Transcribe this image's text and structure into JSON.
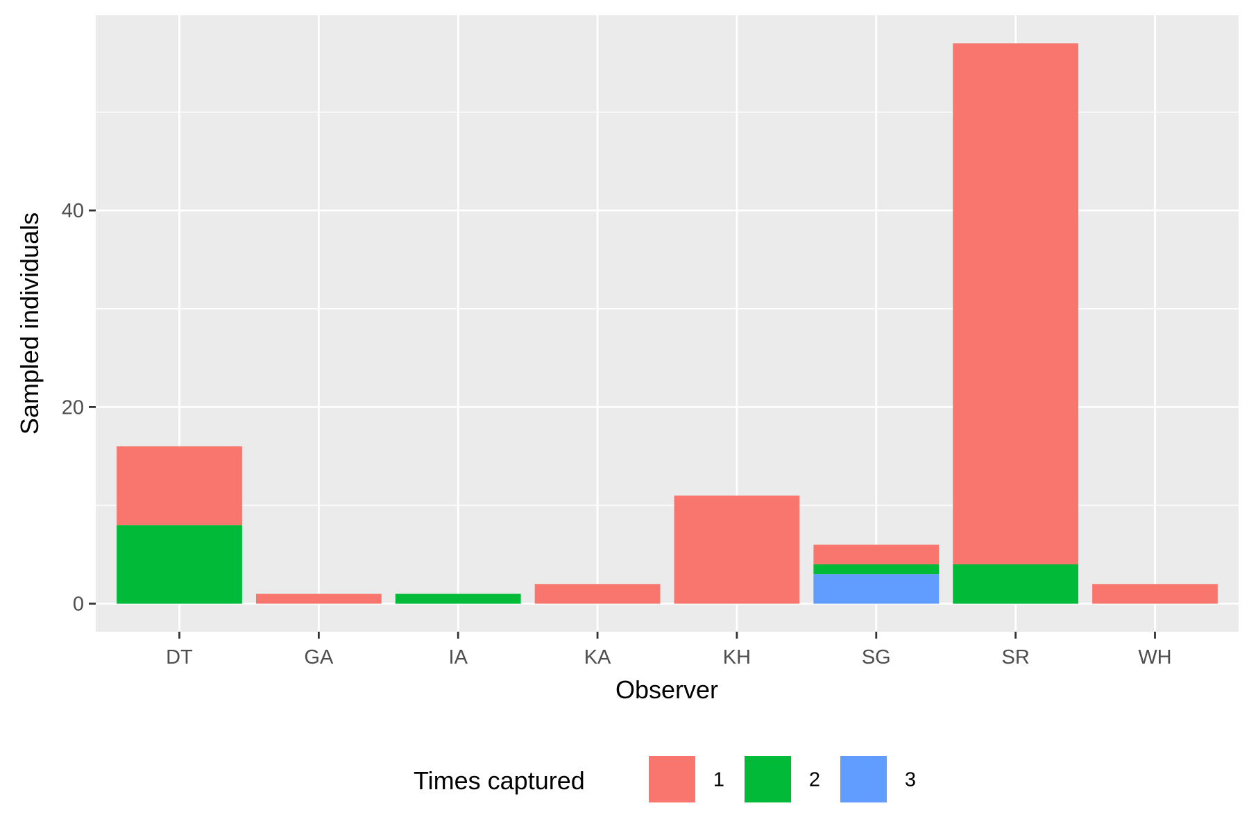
{
  "chart_data": {
    "type": "bar",
    "stacked": true,
    "categories": [
      "DT",
      "GA",
      "IA",
      "KA",
      "KH",
      "SG",
      "SR",
      "WH"
    ],
    "series": [
      {
        "name": "1",
        "color": "#F8766D",
        "values": [
          8,
          1,
          0,
          2,
          11,
          2,
          53,
          2
        ]
      },
      {
        "name": "2",
        "color": "#00BA38",
        "values": [
          8,
          0,
          1,
          0,
          0,
          1,
          4,
          0
        ]
      },
      {
        "name": "3",
        "color": "#619CFF",
        "values": [
          0,
          0,
          0,
          0,
          0,
          3,
          0,
          0
        ]
      }
    ],
    "xlabel": "Observer",
    "ylabel": "Sampled individuals",
    "yticks": [
      0,
      20,
      40
    ],
    "ylim": [
      -2.85,
      59.85
    ],
    "grid": true,
    "legend": {
      "title": "Times captured",
      "position": "bottom"
    },
    "panel_background": "#EBEBEB",
    "grid_color": "#FFFFFF"
  }
}
